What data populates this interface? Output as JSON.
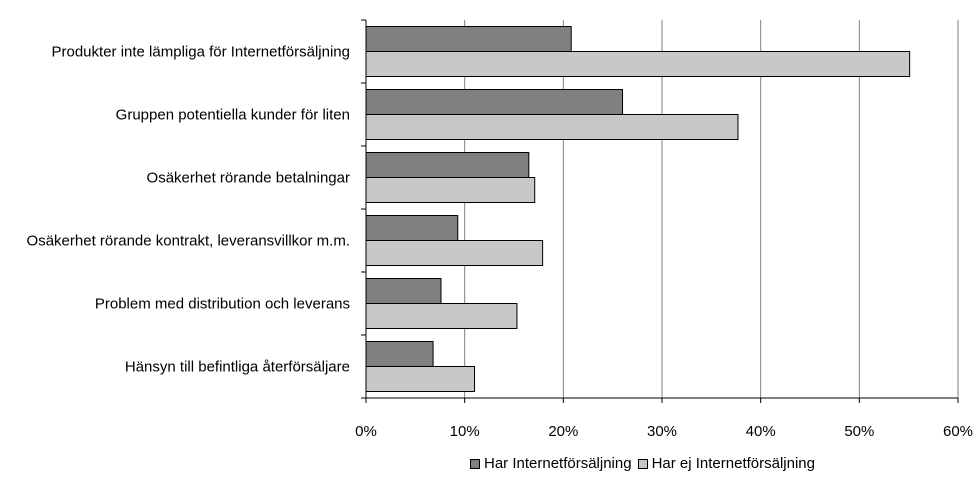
{
  "chart_data": {
    "type": "bar",
    "orientation": "horizontal",
    "categories": [
      "Produkter inte lämpliga för Internetförsäljning",
      "Gruppen potentiella kunder för liten",
      "Osäkerhet rörande betalningar",
      "Osäkerhet rörande kontrakt, leveransvillkor m.m.",
      "Problem med distribution och leverans",
      "Hänsyn till befintliga återförsäljare"
    ],
    "series": [
      {
        "name": "Har Internetförsäljning",
        "color": "#808080",
        "values": [
          20.8,
          26.0,
          16.5,
          9.3,
          7.6,
          6.8
        ]
      },
      {
        "name": "Har ej Internetförsäljning",
        "color": "#c8c8c8",
        "values": [
          55.1,
          37.7,
          17.1,
          17.9,
          15.3,
          11.0
        ]
      }
    ],
    "xlim": [
      0,
      60
    ],
    "xticks": [
      "0%",
      "10%",
      "20%",
      "30%",
      "40%",
      "50%",
      "60%"
    ],
    "grid": "vertical",
    "legend_position": "bottom"
  }
}
